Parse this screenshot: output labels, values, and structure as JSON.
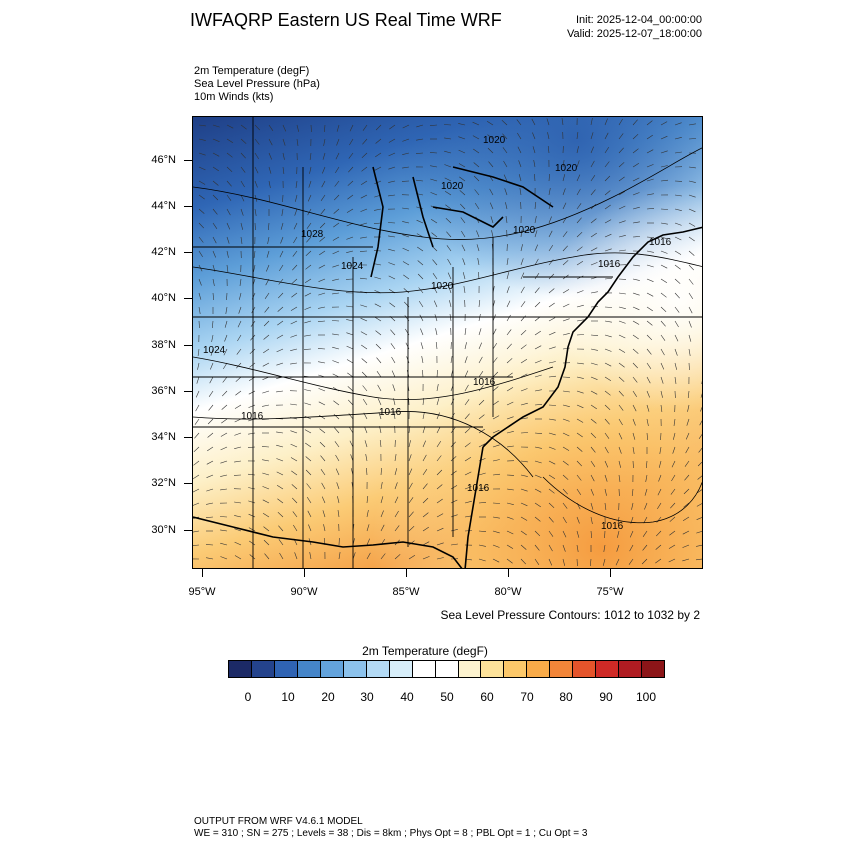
{
  "header": {
    "title": "IWFAQRP Eastern US Real Time WRF",
    "init": "Init: 2025-12-04_00:00:00",
    "valid": "Valid: 2025-12-07_18:00:00"
  },
  "fields": [
    "2m Temperature   (degF)",
    "Sea Level Pressure   (hPa)",
    "10m Winds   (kts)"
  ],
  "map": {
    "lat_labels": [
      "46°N",
      "44°N",
      "42°N",
      "40°N",
      "38°N",
      "36°N",
      "34°N",
      "32°N",
      "30°N"
    ],
    "lon_labels": [
      "95°W",
      "90°W",
      "85°W",
      "80°W",
      "75°W"
    ],
    "pressure_labels": [
      "1020",
      "1020",
      "1020",
      "1028",
      "1024",
      "1020",
      "1020",
      "1016",
      "1016",
      "1024",
      "1016",
      "1016",
      "1016",
      "1016",
      "1016"
    ],
    "contour_note": "Sea Level Pressure Contours: 1012 to 1032 by 2"
  },
  "colorbar": {
    "title": "2m Temperature  (degF)",
    "labels": [
      "0",
      "10",
      "20",
      "30",
      "40",
      "50",
      "60",
      "70",
      "80",
      "90",
      "100"
    ],
    "colors": [
      "#1c2a66",
      "#24438c",
      "#2f63b3",
      "#4585c9",
      "#63a3dc",
      "#8cc2ec",
      "#b3daf5",
      "#d7eefa",
      "#ffffff",
      "#ffffff",
      "#fdf3cf",
      "#fde29a",
      "#fcc86a",
      "#f9ab49",
      "#f28539",
      "#e4542b",
      "#cf2a26",
      "#b01c22",
      "#8c1518"
    ]
  },
  "footer": {
    "line1": "OUTPUT FROM WRF V4.6.1 MODEL",
    "line2": "WE = 310 ; SN = 275 ; Levels = 38 ; Dis = 8km ; Phys Opt = 8 ; PBL Opt = 1 ; Cu Opt = 3"
  }
}
